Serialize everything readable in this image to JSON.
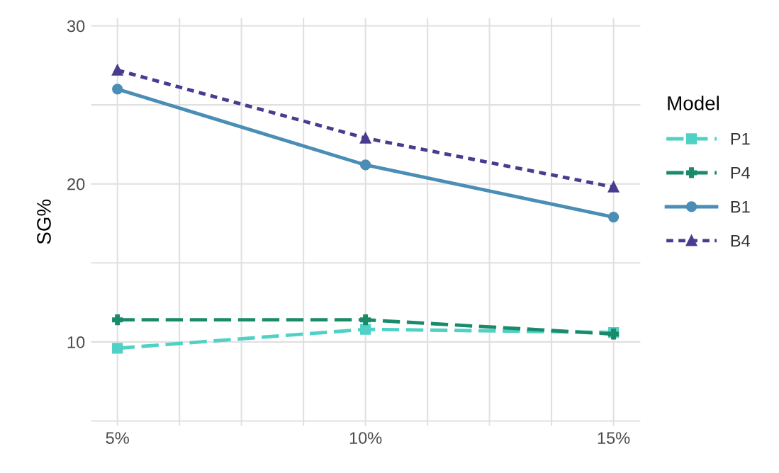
{
  "chart_data": {
    "type": "line",
    "ylabel": "SG%",
    "legend_title": "Model",
    "legend": "right",
    "grid": true,
    "x": [
      5,
      10,
      15
    ],
    "xlim": [
      4.47,
      15.54
    ],
    "xticks": [
      {
        "value": 5,
        "label": "5%"
      },
      {
        "value": 6.25,
        "label": null
      },
      {
        "value": 7.5,
        "label": null
      },
      {
        "value": 8.75,
        "label": null
      },
      {
        "value": 10,
        "label": "10%"
      },
      {
        "value": 11.25,
        "label": null
      },
      {
        "value": 12.5,
        "label": null
      },
      {
        "value": 13.75,
        "label": null
      },
      {
        "value": 15,
        "label": "15%"
      }
    ],
    "ylim": [
      4.7,
      30.5
    ],
    "yticks": [
      {
        "value": 5,
        "label": null
      },
      10,
      {
        "value": 15,
        "label": null
      },
      20,
      {
        "value": 25,
        "label": null
      },
      30
    ],
    "series": [
      {
        "name": "P1",
        "color": "#4fd1c5",
        "marker": "square",
        "line_style": "dashed",
        "values": [
          9.6,
          10.8,
          10.6
        ]
      },
      {
        "name": "P4",
        "color": "#1b8a6b",
        "marker": "cross",
        "line_style": "dashed",
        "values": [
          11.4,
          11.4,
          10.5
        ]
      },
      {
        "name": "B1",
        "color": "#4a8db5",
        "marker": "circle",
        "line_style": "solid",
        "values": [
          26.0,
          21.2,
          17.9
        ]
      },
      {
        "name": "B4",
        "color": "#4b3b8f",
        "marker": "triangle",
        "line_style": "dotted",
        "values": [
          27.2,
          22.9,
          19.8
        ]
      }
    ]
  }
}
